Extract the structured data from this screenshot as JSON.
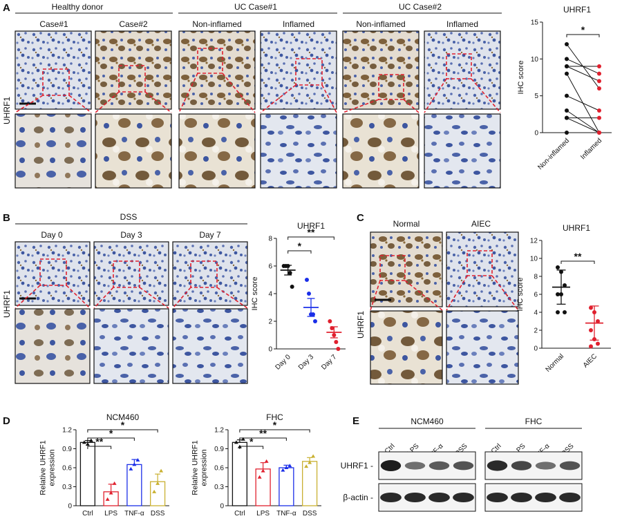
{
  "panels": {
    "A": {
      "label": "A",
      "stain_label": "UHRF1",
      "group_headers": [
        "Healthy donor",
        "UC Case#1",
        "UC Case#2"
      ],
      "column_headers": [
        "Case#1",
        "Case#2",
        "Non-inflamed",
        "Inflamed",
        "Non-inflamed",
        "Inflamed"
      ],
      "chart": {
        "type": "scatter",
        "title": "UHRF1",
        "ylabel": "IHC score",
        "categories": [
          "Non-inflamed",
          "Inflamed"
        ],
        "ylim": [
          0,
          15
        ],
        "yticks": [
          "0",
          "5",
          "10",
          "15"
        ],
        "significance": "*",
        "pairs": [
          [
            12,
            6
          ],
          [
            10,
            8
          ],
          [
            9,
            9
          ],
          [
            9,
            7
          ],
          [
            8,
            0
          ],
          [
            5,
            3
          ],
          [
            3,
            0
          ],
          [
            2,
            0
          ],
          [
            2,
            2
          ],
          [
            0,
            0
          ]
        ],
        "colors": {
          "left": "#111111",
          "right": "#e0202e"
        }
      }
    },
    "B": {
      "label": "B",
      "stain_label": "UHRF1",
      "treatment": "DSS",
      "column_headers": [
        "Day 0",
        "Day 3",
        "Day 7"
      ],
      "chart": {
        "type": "scatter",
        "title": "UHRF1",
        "ylabel": "IHC score",
        "categories": [
          "Day 0",
          "Day 3",
          "Day 7"
        ],
        "ylim": [
          0,
          8
        ],
        "yticks": [
          "0",
          "2",
          "4",
          "6",
          "8"
        ],
        "points": [
          [
            6,
            6,
            6,
            5.5,
            4.5
          ],
          [
            5,
            4,
            2.5,
            2.5,
            2
          ],
          [
            2,
            1.5,
            1,
            0.5,
            0
          ]
        ],
        "means": [
          5.7,
          3,
          1.2
        ],
        "sems": [
          0.35,
          0.65,
          0.4
        ],
        "colors": [
          "#111111",
          "#1a2ee8",
          "#e0202e"
        ],
        "significance": [
          {
            "from": 0,
            "to": 1,
            "label": "*"
          },
          {
            "from": 0,
            "to": 2,
            "label": "**"
          }
        ]
      }
    },
    "C": {
      "label": "C",
      "stain_label": "UHRF1",
      "column_headers": [
        "Normal",
        "AIEC"
      ],
      "chart": {
        "type": "scatter",
        "title": "UHRF1",
        "ylabel": "IHC score",
        "categories": [
          "Normal",
          "AIEC"
        ],
        "ylim": [
          0,
          12
        ],
        "yticks": [
          "0",
          "2",
          "4",
          "6",
          "8",
          "10",
          "12"
        ],
        "points": [
          [
            9,
            8.5,
            7,
            6,
            6,
            4,
            4
          ],
          [
            4.5,
            4,
            3,
            2,
            1,
            0.5,
            0.2
          ]
        ],
        "means": [
          6.8,
          2.8
        ],
        "sems": [
          1.9,
          1.9
        ],
        "colors": [
          "#111111",
          "#e0202e"
        ],
        "significance": [
          {
            "from": 0,
            "to": 1,
            "label": "**"
          }
        ]
      }
    },
    "D": {
      "label": "D",
      "charts": [
        {
          "type": "bar",
          "title": "NCM460",
          "ylabel": "Relative UHRF1 expression",
          "categories": [
            "Ctrl",
            "LPS",
            "TNF-α",
            "DSS"
          ],
          "ylim": [
            0,
            1.2
          ],
          "yticks": [
            "0",
            "0.3",
            "0.6",
            "0.9",
            "1.2"
          ],
          "values": [
            1.0,
            0.22,
            0.65,
            0.38
          ],
          "errors": [
            0.03,
            0.12,
            0.08,
            0.12
          ],
          "points": [
            [
              1.0,
              0.97,
              1.03
            ],
            [
              0.1,
              0.2,
              0.35
            ],
            [
              0.58,
              0.65,
              0.72
            ],
            [
              0.22,
              0.35,
              0.55
            ]
          ],
          "colors": [
            "#111111",
            "#e0202e",
            "#1a2ee8",
            "#c9b030"
          ],
          "significance": [
            {
              "from": 0,
              "to": 1,
              "label": "**"
            },
            {
              "from": 0,
              "to": 2,
              "label": "*"
            },
            {
              "from": 0,
              "to": 3,
              "label": "*"
            }
          ]
        },
        {
          "type": "bar",
          "title": "FHC",
          "ylabel": "Relative UHRF1 expression",
          "categories": [
            "Ctrl",
            "LPS",
            "TNF-α",
            "DSS"
          ],
          "ylim": [
            0,
            1.2
          ],
          "yticks": [
            "0",
            "0.3",
            "0.6",
            "0.9",
            "1.2"
          ],
          "values": [
            1.0,
            0.58,
            0.6,
            0.7
          ],
          "errors": [
            0.04,
            0.1,
            0.04,
            0.06
          ],
          "points": [
            [
              1.0,
              0.93,
              1.05
            ],
            [
              0.45,
              0.55,
              0.7
            ],
            [
              0.56,
              0.6,
              0.63
            ],
            [
              0.62,
              0.68,
              0.78
            ]
          ],
          "colors": [
            "#111111",
            "#e0202e",
            "#1a2ee8",
            "#c9b030"
          ],
          "significance": [
            {
              "from": 0,
              "to": 1,
              "label": "*"
            },
            {
              "from": 0,
              "to": 2,
              "label": "**"
            },
            {
              "from": 0,
              "to": 3,
              "label": "*"
            }
          ]
        }
      ]
    },
    "E": {
      "label": "E",
      "cell_lines": [
        "NCM460",
        "FHC"
      ],
      "lanes": [
        "Ctrl",
        "LPS",
        "TNF-α",
        "DSS"
      ],
      "bands": [
        "UHRF1 -",
        "β-actin -"
      ],
      "uhrf1_intensity": [
        [
          1.0,
          0.4,
          0.55,
          0.6
        ],
        [
          0.9,
          0.7,
          0.4,
          0.6
        ]
      ],
      "actin_intensity": [
        [
          0.9,
          0.9,
          0.9,
          0.9
        ],
        [
          0.9,
          0.9,
          0.9,
          0.9
        ]
      ]
    }
  }
}
